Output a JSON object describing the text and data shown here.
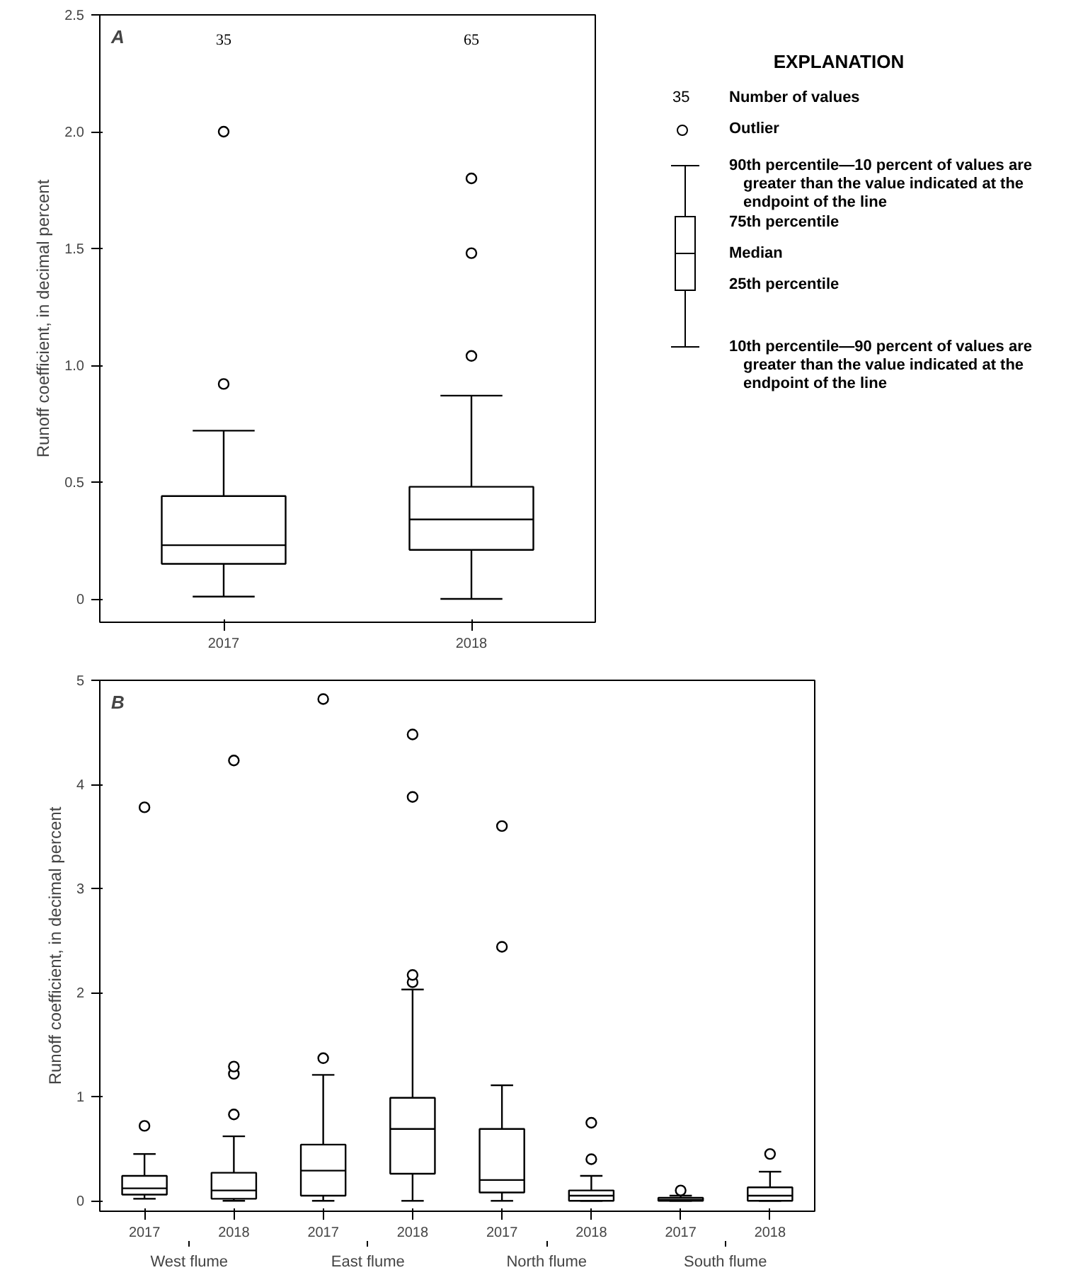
{
  "chart_data": [
    {
      "type": "box",
      "categories": [
        "2017",
        "2018"
      ],
      "ylabel": "Runoff coefficient, in decimal percent",
      "ylim": [
        -0.1,
        2.5
      ],
      "yticks": [
        0,
        0.5,
        {
          "value": 1,
          "label": "1.0"
        },
        1.5,
        {
          "value": 2,
          "label": "2.0"
        },
        2.5
      ],
      "boxes": [
        {
          "low": 0.01,
          "q1": 0.15,
          "median": 0.23,
          "q3": 0.44,
          "high": 0.72,
          "outliers": [
            0.92,
            2.0
          ]
        },
        {
          "low": 0.0,
          "q1": 0.21,
          "median": 0.34,
          "q3": 0.48,
          "high": 0.87,
          "outliers": [
            1.04,
            1.48,
            1.8
          ]
        }
      ],
      "annotations": [
        "A",
        "35",
        "65"
      ]
    },
    {
      "type": "other",
      "title": "EXPLANATION",
      "annotations": [
        "35",
        "Number of values",
        "Outlier",
        "90th percentile—10 percent of values are greater than the value indicated at the endpoint of the line",
        "75th percentile",
        "Median",
        "25th percentile",
        "10th percentile—90 percent of values are greater than the value indicated at the endpoint of the line"
      ]
    },
    {
      "type": "box",
      "categories": [
        "2017",
        "2018",
        "2017",
        "2018",
        "2017",
        "2018",
        "2017",
        "2018"
      ],
      "ylabel": "Runoff coefficient, in decimal percent",
      "ylim": [
        -0.1,
        5
      ],
      "yticks": [
        0,
        1,
        2,
        3,
        4,
        5
      ],
      "boxes": [
        {
          "low": 0.02,
          "q1": 0.06,
          "median": 0.12,
          "q3": 0.24,
          "high": 0.45,
          "outliers": [
            0.72,
            3.78
          ]
        },
        {
          "low": 0.0,
          "q1": 0.02,
          "median": 0.1,
          "q3": 0.27,
          "high": 0.62,
          "outliers": [
            0.83,
            1.22,
            1.29,
            4.23
          ]
        },
        {
          "low": 0.0,
          "q1": 0.05,
          "median": 0.29,
          "q3": 0.54,
          "high": 1.21,
          "outliers": [
            1.37,
            4.82
          ]
        },
        {
          "low": 0.0,
          "q1": 0.26,
          "median": 0.69,
          "q3": 0.99,
          "high": 2.03,
          "outliers": [
            2.1,
            2.17,
            3.88,
            4.48
          ]
        },
        {
          "low": 0.0,
          "q1": 0.08,
          "median": 0.2,
          "q3": 0.69,
          "high": 1.11,
          "outliers": [
            2.44,
            3.6
          ]
        },
        {
          "low": 0.0,
          "q1": 0.0,
          "median": 0.05,
          "q3": 0.1,
          "high": 0.24,
          "outliers": [
            0.4,
            0.75
          ]
        },
        {
          "low": 0.0,
          "q1": 0.0,
          "median": 0.01,
          "q3": 0.03,
          "high": 0.05,
          "outliers": [
            0.1
          ]
        },
        {
          "low": 0.0,
          "q1": 0.0,
          "median": 0.05,
          "q3": 0.13,
          "high": 0.28,
          "outliers": [
            0.45
          ]
        }
      ],
      "annotations": [
        "B",
        "West flume",
        "East flume",
        "North flume",
        "South flume"
      ]
    }
  ]
}
